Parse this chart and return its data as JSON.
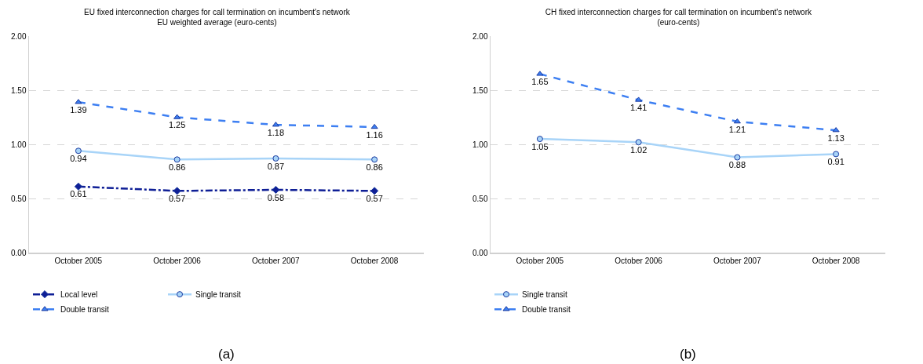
{
  "chart_data": [
    {
      "type": "line",
      "title": "EU fixed interconnection charges for call termination on incumbent's network\nEU weighted average (euro-cents)",
      "categories": [
        "October 2005",
        "October 2006",
        "October 2007",
        "October 2008"
      ],
      "series": [
        {
          "name": "Local level",
          "color": "#0f1f96",
          "values": [
            0.61,
            0.57,
            0.58,
            0.57
          ],
          "line_style": "dashdot",
          "marker": "diamond"
        },
        {
          "name": "Single transit",
          "color": "#a8d4f8",
          "values": [
            0.94,
            0.86,
            0.87,
            0.86
          ],
          "line_style": "solid",
          "marker": "circle"
        },
        {
          "name": "Double transit",
          "color": "#3d7ff2",
          "values": [
            1.39,
            1.25,
            1.18,
            1.16
          ],
          "line_style": "dashed",
          "marker": "triangle"
        }
      ],
      "ylim": [
        0,
        2
      ],
      "yticks": [
        {
          "value": 0,
          "label": "0.00"
        },
        {
          "value": 0.5,
          "label": "0.50"
        },
        {
          "value": 1,
          "label": "1.00"
        },
        {
          "value": 1.5,
          "label": "1.50"
        },
        {
          "value": 2,
          "label": "2.00"
        }
      ],
      "grid": "y",
      "legend": "bottom",
      "data_labels": true,
      "annotations": [
        "(a)"
      ]
    },
    {
      "type": "line",
      "title": "CH fixed interconnection charges for call termination on incumbent's network\n(euro-cents)",
      "categories": [
        "October 2005",
        "October 2006",
        "October 2007",
        "October 2008"
      ],
      "series": [
        {
          "name": "Single transit",
          "color": "#a8d4f8",
          "values": [
            1.05,
            1.02,
            0.88,
            0.91
          ],
          "line_style": "solid",
          "marker": "circle"
        },
        {
          "name": "Double transit",
          "color": "#3d7ff2",
          "values": [
            1.65,
            1.41,
            1.21,
            1.13
          ],
          "line_style": "dashed",
          "marker": "triangle"
        }
      ],
      "ylim": [
        0,
        2
      ],
      "yticks": [
        {
          "value": 0,
          "label": "0.00"
        },
        {
          "value": 0.5,
          "label": "0.50"
        },
        {
          "value": 1,
          "label": "1.00"
        },
        {
          "value": 1.5,
          "label": "1.50"
        },
        {
          "value": 2,
          "label": "2.00"
        }
      ],
      "grid": "y",
      "legend": "bottom",
      "data_labels": true,
      "annotations": [
        "(b)"
      ]
    }
  ]
}
